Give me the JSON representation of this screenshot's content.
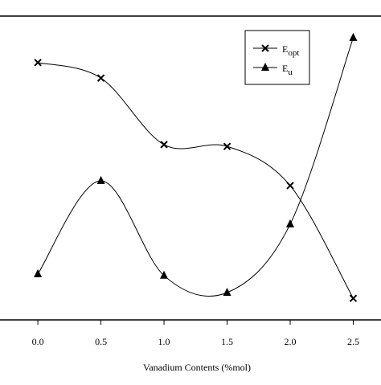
{
  "chart_data": {
    "type": "line",
    "x_label": "Vanadium Contents (%mol)",
    "x": [
      0,
      0.5,
      1,
      1.5,
      2,
      2.5
    ],
    "xlim": [
      -0.3,
      2.72
    ],
    "xticks": [
      {
        "value": 0,
        "label": "0.0"
      },
      0.5,
      {
        "value": 1,
        "label": "1.0"
      },
      1.5,
      {
        "value": 2,
        "label": "2.0"
      },
      2.5
    ],
    "ylim": [
      0,
      100
    ],
    "legend": "top-right",
    "series": [
      {
        "name": "E",
        "subscript": "opt",
        "marker": "x",
        "color": "#000000",
        "values": [
          84.7,
          79.6,
          57.7,
          57.1,
          44.2,
          7.1
        ]
      },
      {
        "name": "E",
        "subscript": "u",
        "marker": "triangle",
        "color": "#000000",
        "values": [
          15.1,
          45.8,
          14.6,
          9.0,
          31.5,
          92.9
        ]
      }
    ]
  }
}
